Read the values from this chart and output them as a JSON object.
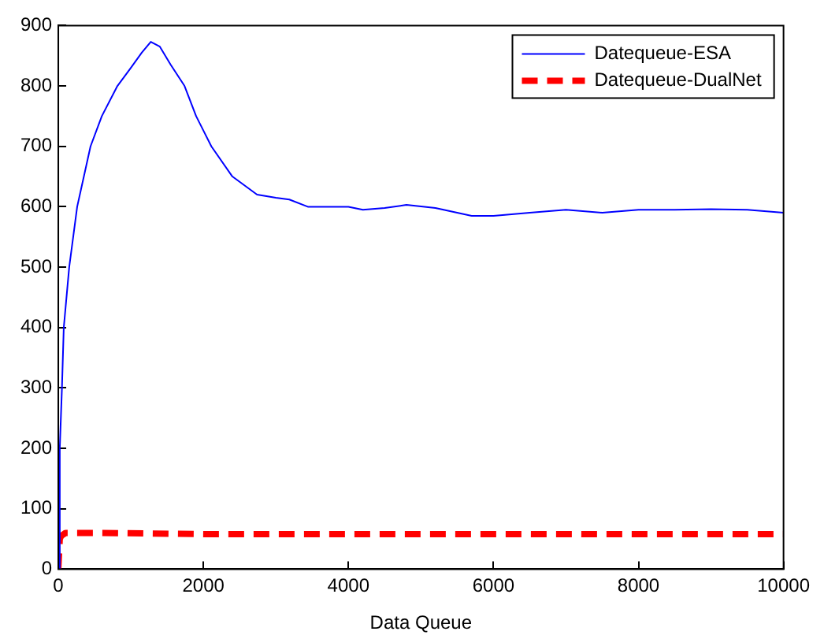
{
  "chart_data": {
    "type": "line",
    "xlabel": "Data Queue",
    "xlim": [
      0,
      10000
    ],
    "xticks": [
      0,
      2000,
      4000,
      6000,
      8000,
      10000
    ],
    "ylim": [
      0,
      900
    ],
    "yticks": [
      0,
      100,
      200,
      300,
      400,
      500,
      600,
      700,
      800,
      900
    ],
    "grid": false,
    "legend": "top right",
    "marker": "none",
    "series": [
      {
        "name": "Datequeue-ESA",
        "color": "#0000ff",
        "line_style": "solid",
        "x": [
          0,
          20,
          50,
          75,
          150,
          260,
          444,
          600,
          815,
          1000,
          1150,
          1275,
          1400,
          1550,
          1740,
          1900,
          2110,
          2400,
          2740,
          3000,
          3185,
          3440,
          3700,
          4000,
          4200,
          4500,
          4800,
          5200,
          5500,
          5700,
          6000,
          6500,
          7000,
          7500,
          8000,
          8500,
          9000,
          9500,
          10000
        ],
        "values": [
          0,
          200,
          300,
          400,
          500,
          600,
          700,
          750,
          800,
          830,
          855,
          873,
          865,
          835,
          800,
          750,
          700,
          650,
          620,
          615,
          612,
          600,
          600,
          600,
          595,
          598,
          603,
          598,
          590,
          585,
          585,
          590,
          595,
          590,
          595,
          595,
          596,
          595,
          590
        ]
      },
      {
        "name": "Datequeue-DualNet",
        "color": "#ff0000",
        "line_style": "dashed",
        "x": [
          0,
          20,
          40,
          100,
          500,
          2000,
          5000,
          10000
        ],
        "values": [
          0,
          50,
          55,
          60,
          60,
          58,
          58,
          58
        ]
      }
    ]
  }
}
